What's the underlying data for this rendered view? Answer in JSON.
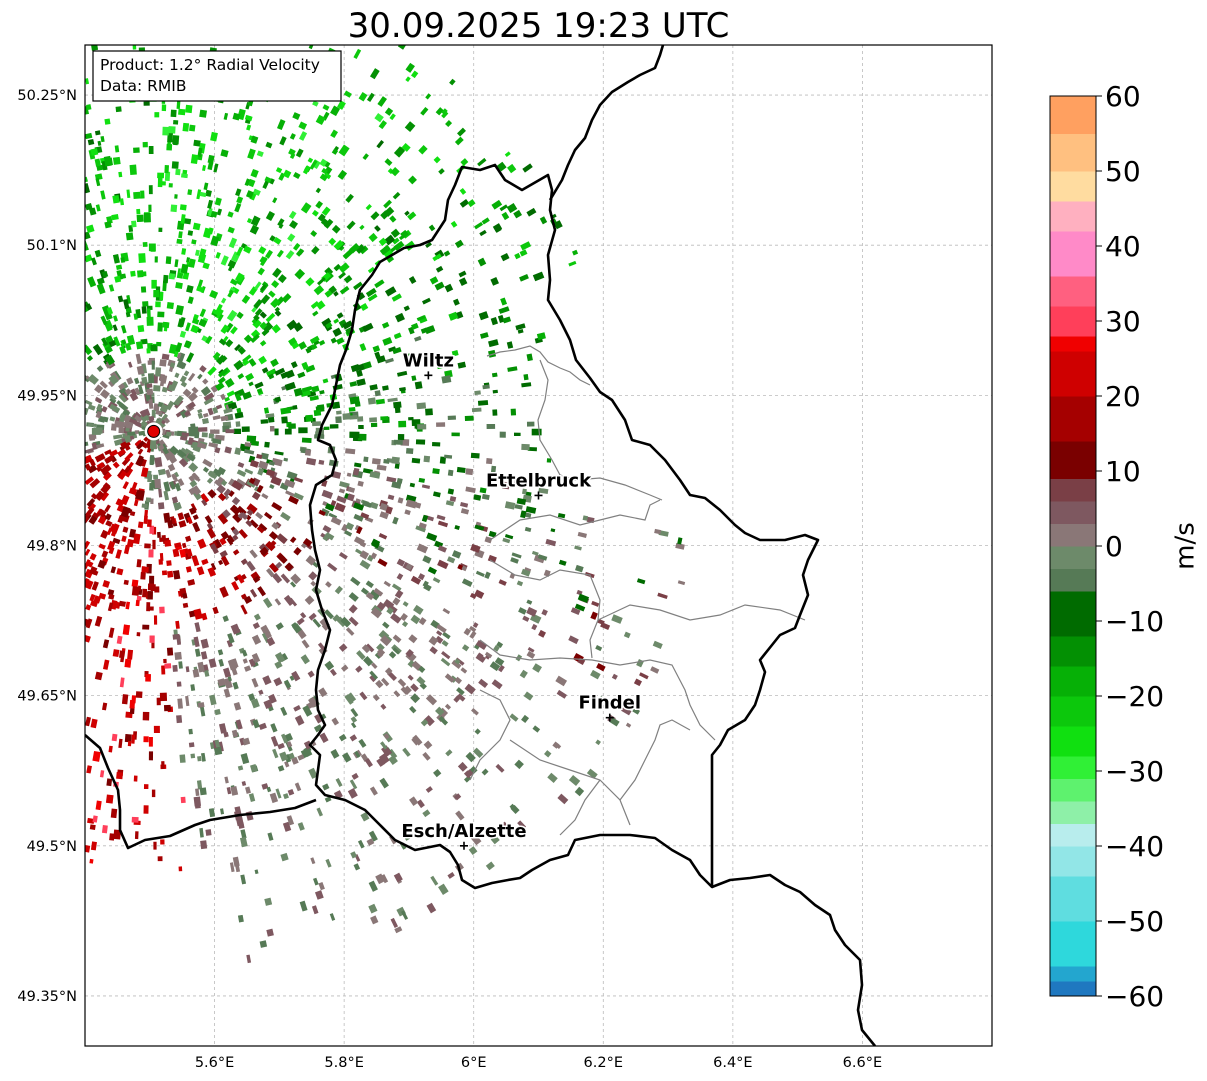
{
  "title": "30.09.2025 19:23 UTC",
  "info_box": {
    "product": "Product: 1.2° Radial Velocity",
    "data": "Data: RMIB"
  },
  "map": {
    "lon_range": [
      5.4,
      6.8
    ],
    "lat_range": [
      49.3,
      50.3
    ],
    "lon_ticks": [
      {
        "value": 5.6,
        "label": "5.6°E"
      },
      {
        "value": 5.8,
        "label": "5.8°E"
      },
      {
        "value": 6.0,
        "label": "6°E"
      },
      {
        "value": 6.2,
        "label": "6.2°E"
      },
      {
        "value": 6.4,
        "label": "6.4°E"
      },
      {
        "value": 6.6,
        "label": "6.6°E"
      }
    ],
    "lat_ticks": [
      {
        "value": 49.35,
        "label": "49.35°N"
      },
      {
        "value": 49.5,
        "label": "49.5°N"
      },
      {
        "value": 49.65,
        "label": "49.65°N"
      },
      {
        "value": 49.8,
        "label": "49.8°N"
      },
      {
        "value": 49.95,
        "label": "49.95°N"
      },
      {
        "value": 50.1,
        "label": "50.1°N"
      },
      {
        "value": 50.25,
        "label": "50.25°N"
      }
    ],
    "grid": true,
    "radar_site": {
      "lon": 5.506,
      "lat": 49.914
    },
    "cities": [
      {
        "name": "Wiltz",
        "lon": 5.93,
        "lat": 49.97
      },
      {
        "name": "Ettelbruck",
        "lon": 6.1,
        "lat": 49.85
      },
      {
        "name": "Findel",
        "lon": 6.21,
        "lat": 49.628
      },
      {
        "name": "Esch/Alzette",
        "lon": 5.985,
        "lat": 49.5
      }
    ],
    "border_color": "#000000",
    "district_color": "#808080"
  },
  "colorbar": {
    "label": "m/s",
    "min": -60,
    "max": 60,
    "ticks": [
      {
        "value": 60,
        "label": "60"
      },
      {
        "value": 50,
        "label": "50"
      },
      {
        "value": 40,
        "label": "40"
      },
      {
        "value": 30,
        "label": "30"
      },
      {
        "value": 20,
        "label": "20"
      },
      {
        "value": 10,
        "label": "10"
      },
      {
        "value": 0,
        "label": "0"
      },
      {
        "value": -10,
        "label": "−10"
      },
      {
        "value": -20,
        "label": "−20"
      },
      {
        "value": -30,
        "label": "−30"
      },
      {
        "value": -40,
        "label": "−40"
      },
      {
        "value": -50,
        "label": "−50"
      },
      {
        "value": -60,
        "label": "−60"
      }
    ],
    "stops": [
      {
        "from": -60,
        "to": -58,
        "color": "#1f78c0"
      },
      {
        "from": -58,
        "to": -56,
        "color": "#23a6cf"
      },
      {
        "from": -56,
        "to": -50,
        "color": "#2ed8dc"
      },
      {
        "from": -50,
        "to": -44,
        "color": "#5fdde0"
      },
      {
        "from": -44,
        "to": -40,
        "color": "#92e6e7"
      },
      {
        "from": -40,
        "to": -37,
        "color": "#b8eded"
      },
      {
        "from": -37,
        "to": -34,
        "color": "#8ef0a8"
      },
      {
        "from": -34,
        "to": -31,
        "color": "#5ef26e"
      },
      {
        "from": -31,
        "to": -28,
        "color": "#30f036"
      },
      {
        "from": -28,
        "to": -24,
        "color": "#10e010"
      },
      {
        "from": -24,
        "to": -20,
        "color": "#0cc80c"
      },
      {
        "from": -20,
        "to": -16,
        "color": "#06b006"
      },
      {
        "from": -16,
        "to": -12,
        "color": "#039003"
      },
      {
        "from": -12,
        "to": -6,
        "color": "#006b00"
      },
      {
        "from": -6,
        "to": -3,
        "color": "#567a56"
      },
      {
        "from": -3,
        "to": 0,
        "color": "#6d8a6a"
      },
      {
        "from": 0,
        "to": 3,
        "color": "#8a7777"
      },
      {
        "from": 3,
        "to": 6,
        "color": "#7e5860"
      },
      {
        "from": 6,
        "to": 9,
        "color": "#7a3f46"
      },
      {
        "from": 9,
        "to": 14,
        "color": "#7a0000"
      },
      {
        "from": 14,
        "to": 20,
        "color": "#a50000"
      },
      {
        "from": 20,
        "to": 26,
        "color": "#cf0000"
      },
      {
        "from": 26,
        "to": 28,
        "color": "#f00000"
      },
      {
        "from": 28,
        "to": 32,
        "color": "#ff3f5a"
      },
      {
        "from": 32,
        "to": 36,
        "color": "#ff6080"
      },
      {
        "from": 36,
        "to": 42,
        "color": "#ff8ac8"
      },
      {
        "from": 42,
        "to": 46,
        "color": "#ffb0c0"
      },
      {
        "from": 46,
        "to": 50,
        "color": "#ffdca0"
      },
      {
        "from": 50,
        "to": 55,
        "color": "#ffc080"
      },
      {
        "from": 55,
        "to": 60,
        "color": "#ffa060"
      }
    ]
  }
}
